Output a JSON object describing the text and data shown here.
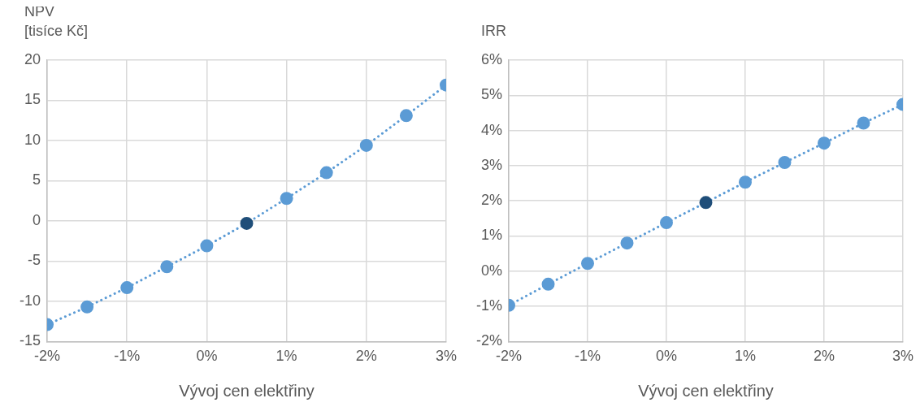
{
  "chart_data": [
    {
      "type": "line",
      "ylabel": "NPV\n[tisíce Kč]",
      "xlabel": "Vývoj cen elektřiny",
      "x": [
        -2,
        -1.5,
        -1,
        -0.5,
        0,
        0.5,
        1,
        1.5,
        2,
        2.5,
        3
      ],
      "series": [
        {
          "color": "#5b9bd5",
          "colors": [
            "#5b9bd5",
            "#5b9bd5",
            "#5b9bd5",
            "#5b9bd5",
            "#5b9bd5",
            "#1f4e79",
            "#5b9bd5",
            "#5b9bd5",
            "#5b9bd5",
            "#5b9bd5",
            "#5b9bd5"
          ],
          "values": [
            -12.9,
            -10.7,
            -8.3,
            -5.7,
            -3.1,
            -0.3,
            2.8,
            6.0,
            9.4,
            13.1,
            16.9
          ]
        }
      ],
      "xlim": [
        -2,
        3
      ],
      "xticks": [
        {
          "value": -2,
          "label": "-2%"
        },
        {
          "value": -1,
          "label": "-1%"
        },
        {
          "value": 0,
          "label": "0%"
        },
        {
          "value": 1,
          "label": "1%"
        },
        {
          "value": 2,
          "label": "2%"
        },
        {
          "value": 3,
          "label": "3%"
        }
      ],
      "ylim": [
        -15,
        20
      ],
      "yticks": [
        -15,
        -10,
        -5,
        0,
        5,
        10,
        15,
        20
      ],
      "grid": true,
      "marker": "circle",
      "line_style": "dotted"
    },
    {
      "type": "line",
      "ylabel": "IRR",
      "xlabel": "Vývoj cen elektřiny",
      "x": [
        -2,
        -1.5,
        -1,
        -0.5,
        0,
        0.5,
        1,
        1.5,
        2,
        2.5,
        3
      ],
      "series": [
        {
          "color": "#5b9bd5",
          "colors": [
            "#5b9bd5",
            "#5b9bd5",
            "#5b9bd5",
            "#5b9bd5",
            "#5b9bd5",
            "#1f4e79",
            "#5b9bd5",
            "#5b9bd5",
            "#5b9bd5",
            "#5b9bd5",
            "#5b9bd5"
          ],
          "values": [
            -0.97,
            -0.37,
            0.22,
            0.8,
            1.38,
            1.95,
            2.53,
            3.09,
            3.64,
            4.21,
            4.74
          ]
        }
      ],
      "xlim": [
        -2,
        3
      ],
      "xticks": [
        {
          "value": -2,
          "label": "-2%"
        },
        {
          "value": -1,
          "label": "-1%"
        },
        {
          "value": 0,
          "label": "0%"
        },
        {
          "value": 1,
          "label": "1%"
        },
        {
          "value": 2,
          "label": "2%"
        },
        {
          "value": 3,
          "label": "3%"
        }
      ],
      "ylim": [
        -2,
        6
      ],
      "yticks": [
        {
          "value": -2,
          "label": "-2%"
        },
        {
          "value": -1,
          "label": "-1%"
        },
        {
          "value": 0,
          "label": "0%"
        },
        {
          "value": 1,
          "label": "1%"
        },
        {
          "value": 2,
          "label": "2%"
        },
        {
          "value": 3,
          "label": "3%"
        },
        {
          "value": 4,
          "label": "4%"
        },
        {
          "value": 5,
          "label": "5%"
        },
        {
          "value": 6,
          "label": "6%"
        }
      ],
      "grid": true,
      "marker": "circle",
      "line_style": "dotted"
    }
  ]
}
